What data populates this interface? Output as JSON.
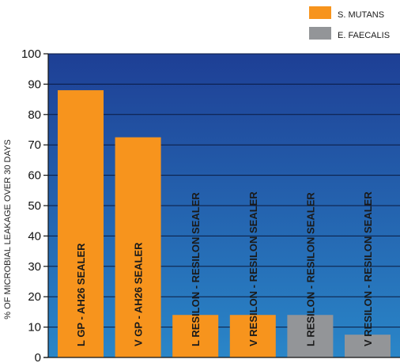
{
  "chart_data": {
    "type": "bar",
    "ylabel": "% OF MICROBIAL LEAKAGE OVER 30 DAYS",
    "xlabel": "",
    "title": "",
    "ylim": [
      0,
      100
    ],
    "yticks": [
      0,
      10,
      20,
      30,
      40,
      50,
      60,
      70,
      80,
      90,
      100
    ],
    "grid": true,
    "legend_position": "top-right",
    "series": [
      {
        "name": "S. MUTANS",
        "color": "#f7941d"
      },
      {
        "name": "E. FAECALIS",
        "color": "#939598"
      }
    ],
    "bars": [
      {
        "label": "L GP - AH26 SEALER",
        "value": 88,
        "series": 0
      },
      {
        "label": "V GP - AH26 SEALER",
        "value": 72.5,
        "series": 0
      },
      {
        "label": "L RESILON - RESILON SEALER",
        "value": 14,
        "series": 0
      },
      {
        "label": "V RESILON - RESILON SEALER",
        "value": 14,
        "series": 0
      },
      {
        "label": "L RESILON - RESILON SEALER",
        "value": 14,
        "series": 1
      },
      {
        "label": "V RESILON - RESILON SEALER",
        "value": 7.5,
        "series": 1
      }
    ],
    "background_gradient": [
      "#1e3f95",
      "#2a86c8"
    ]
  }
}
